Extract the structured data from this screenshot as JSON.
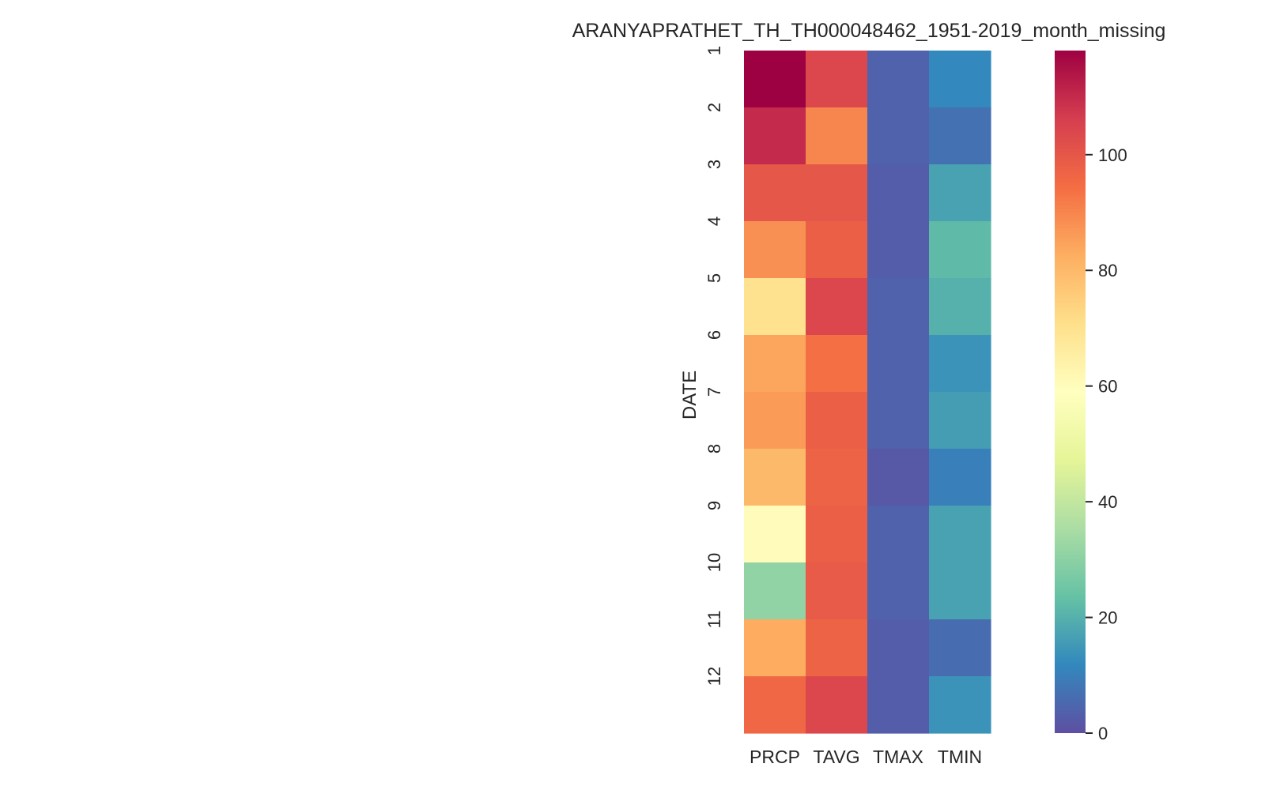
{
  "chart_data": {
    "type": "heatmap",
    "title": "ARANYAPRATHET_TH_TH000048462_1951-2019_month_missing",
    "xlabel": "",
    "ylabel": "DATE",
    "columns": [
      "PRCP",
      "TAVG",
      "TMAX",
      "TMIN"
    ],
    "rows": [
      "1",
      "2",
      "3",
      "4",
      "5",
      "6",
      "7",
      "8",
      "9",
      "10",
      "11",
      "12"
    ],
    "values": [
      [
        118,
        104,
        4,
        12
      ],
      [
        110,
        90,
        4,
        7
      ],
      [
        100,
        100,
        3,
        17
      ],
      [
        88,
        98,
        3,
        22
      ],
      [
        70,
        104,
        4,
        20
      ],
      [
        84,
        94,
        4,
        14
      ],
      [
        86,
        98,
        4,
        16
      ],
      [
        80,
        97,
        2,
        10
      ],
      [
        60,
        98,
        4,
        17
      ],
      [
        31,
        99,
        4,
        17
      ],
      [
        83,
        97,
        3,
        6
      ],
      [
        96,
        104,
        3,
        14
      ]
    ],
    "colorbar": {
      "colormap": "Spectral_r",
      "min": 0,
      "max": 118,
      "ticks": [
        0,
        20,
        40,
        60,
        80,
        100
      ]
    },
    "grid": false,
    "legend": "colorbar-right"
  }
}
